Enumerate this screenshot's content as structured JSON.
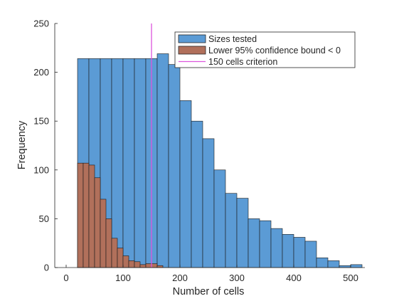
{
  "chart_data": {
    "type": "bar",
    "xlabel": "Number of cells",
    "ylabel": "Frequency",
    "xlim": [
      -20,
      525
    ],
    "ylim": [
      0,
      250
    ],
    "xticks": [
      0,
      100,
      200,
      300,
      400,
      500
    ],
    "yticks": [
      0,
      50,
      100,
      150,
      200,
      250
    ],
    "xtick_labels": [
      "0",
      "100",
      "200",
      "300",
      "400",
      "500"
    ],
    "ytick_labels": [
      "0",
      "50",
      "100",
      "150",
      "200",
      "250"
    ],
    "grid": false,
    "legend_position": "top-right",
    "series": [
      {
        "name": "Sizes tested",
        "color": "#5b9bd5",
        "bin_edges": [
          0,
          20,
          40,
          60,
          80,
          100,
          120,
          140,
          160,
          180,
          200,
          220,
          240,
          260,
          280,
          300,
          320,
          340,
          360,
          380,
          400,
          420,
          440,
          460,
          480,
          500,
          520
        ],
        "values": [
          0,
          214,
          214,
          214,
          214,
          214,
          214,
          214,
          219,
          208,
          171,
          150,
          132,
          100,
          76,
          71,
          50,
          48,
          40,
          34,
          31,
          27,
          10,
          7,
          2,
          3
        ]
      },
      {
        "name": "Lower 95% confidence bound < 0",
        "color": "#b1705b",
        "bin_edges": [
          20,
          30,
          40,
          50,
          60,
          70,
          80,
          90,
          100,
          110,
          120,
          130,
          140,
          150,
          160,
          170
        ],
        "values": [
          107,
          107,
          105,
          92,
          70,
          50,
          30,
          20,
          12,
          7,
          6,
          3,
          4,
          4,
          2
        ]
      }
    ],
    "reference_line": {
      "name": "150 cells criterion",
      "x": 150,
      "color": "#dd55dd"
    }
  }
}
